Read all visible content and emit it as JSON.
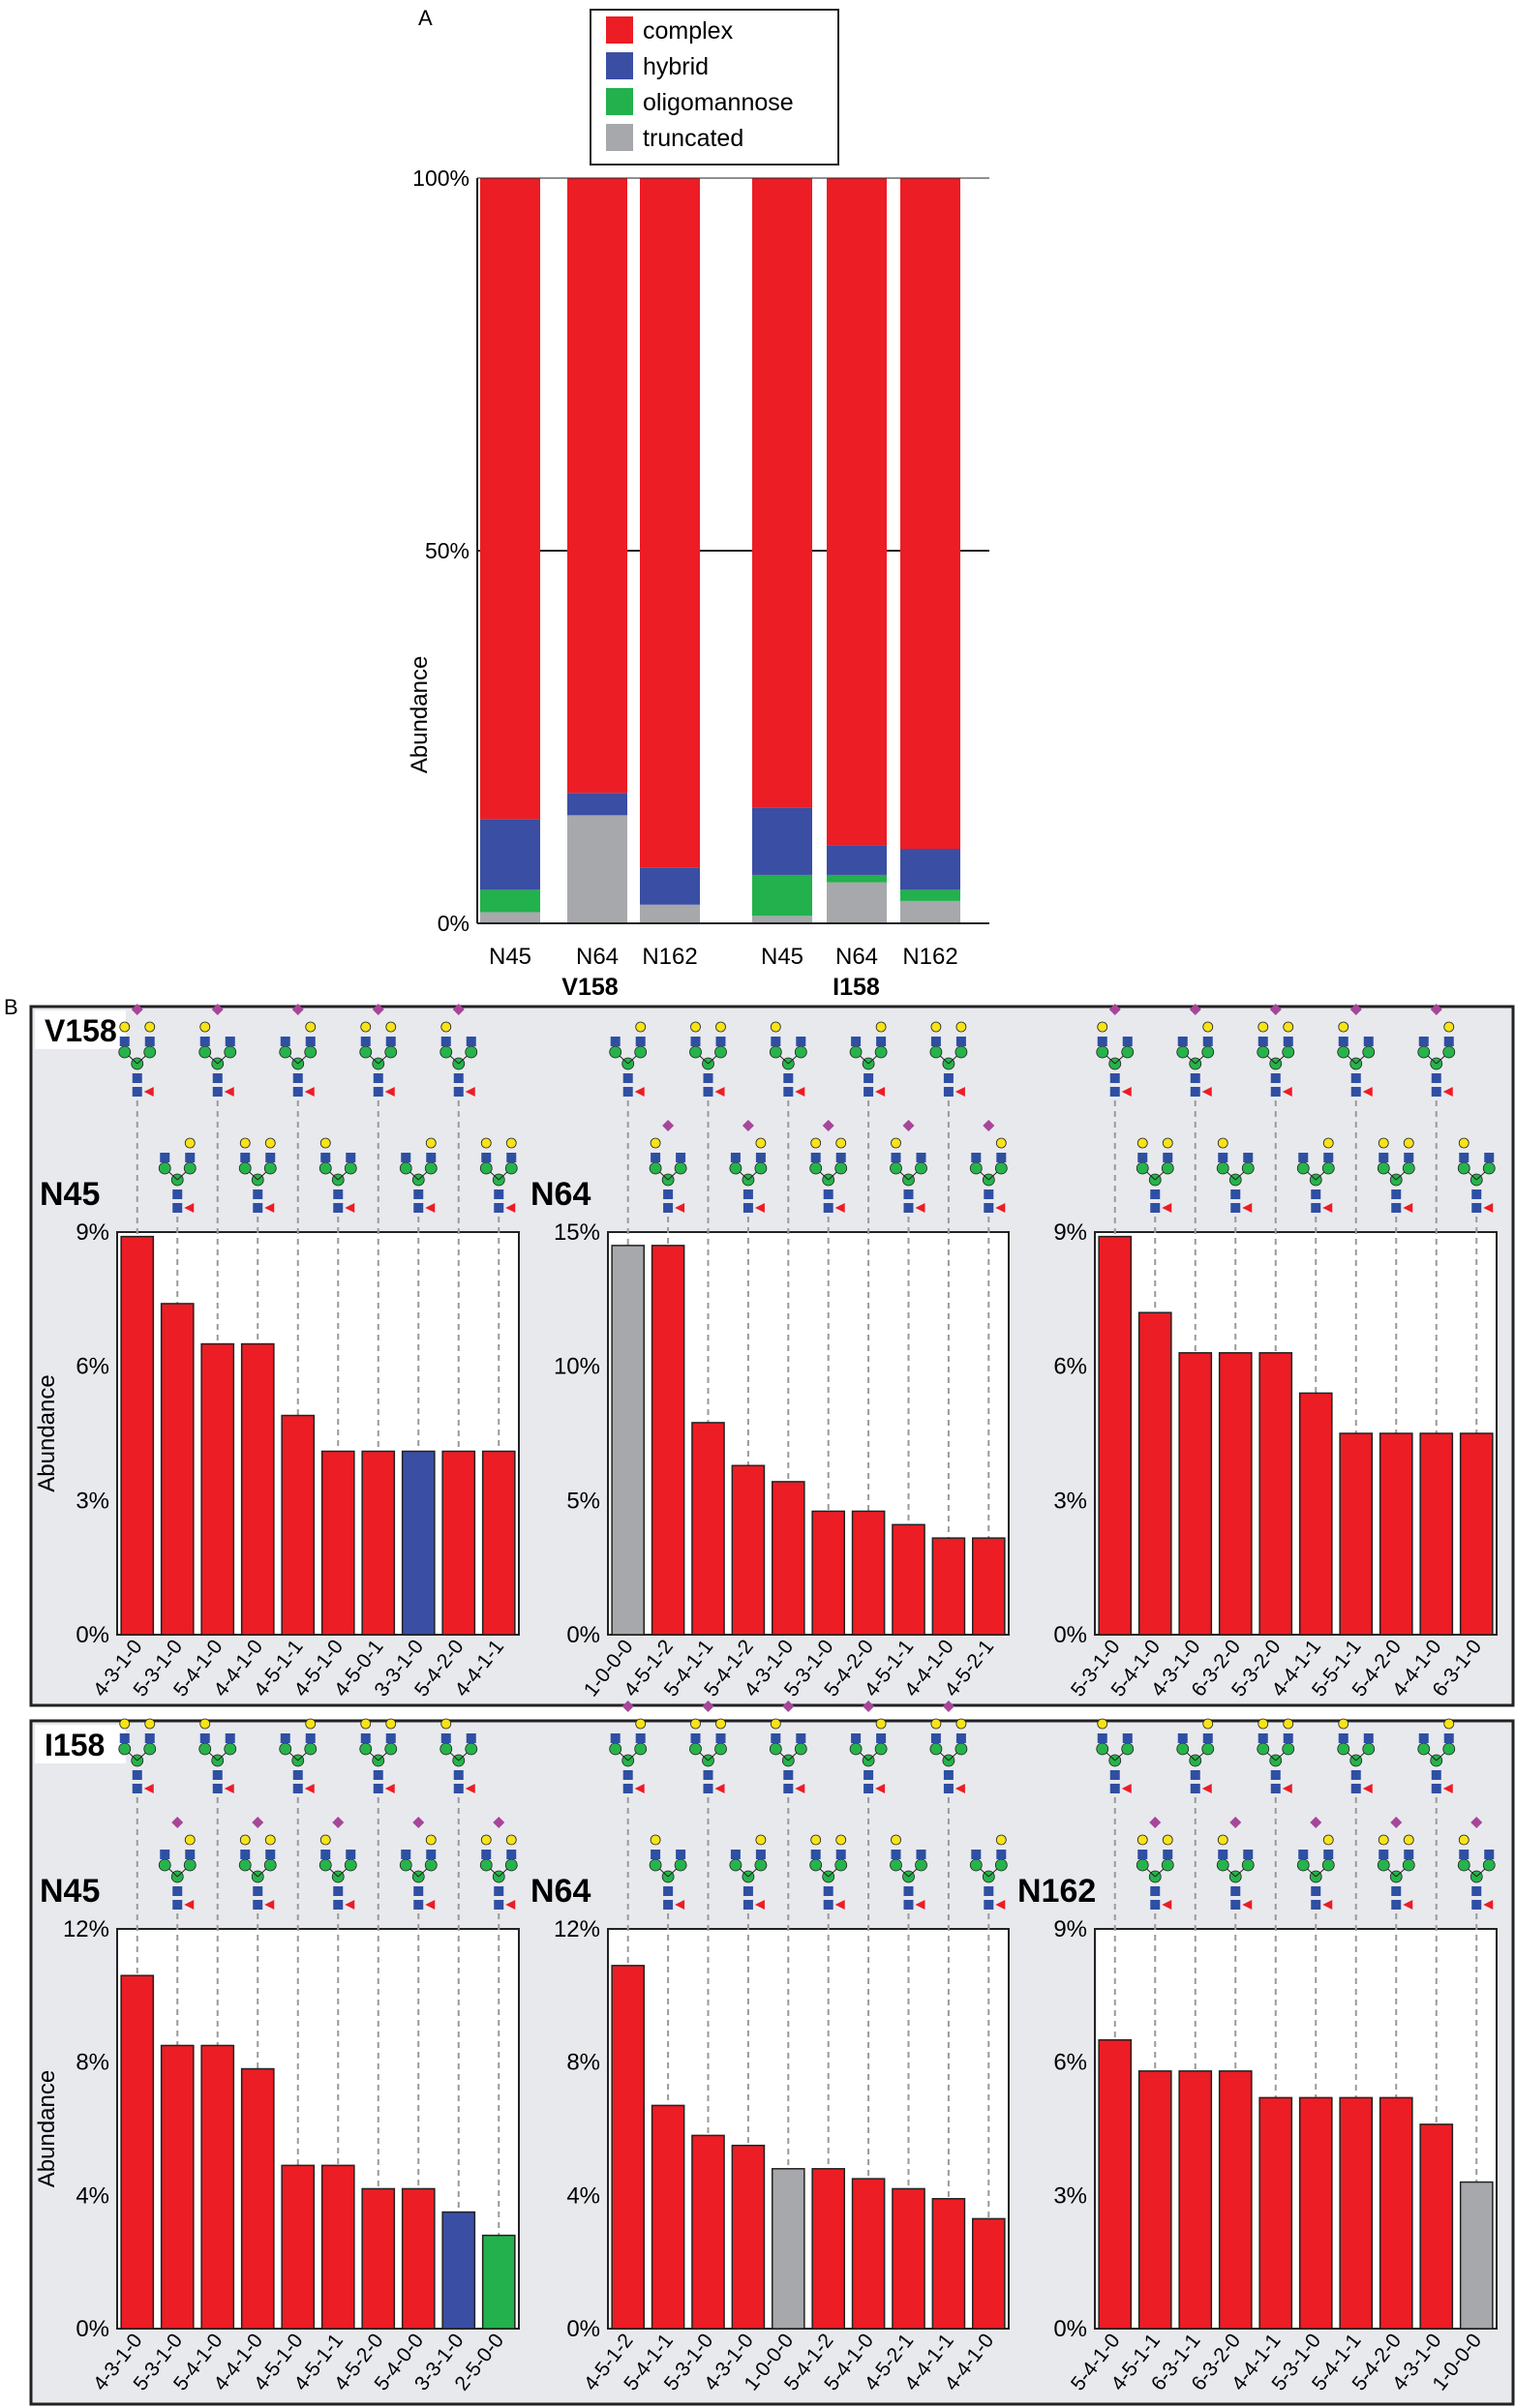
{
  "panel_labels": {
    "a": "A",
    "b": "B"
  },
  "legend": [
    {
      "label": "complex",
      "color": "#ec1d24"
    },
    {
      "label": "hybrid",
      "color": "#3a4ea3"
    },
    {
      "label": "oligomannose",
      "color": "#22b14c"
    },
    {
      "label": "truncated",
      "color": "#a6a8ab"
    }
  ],
  "colors": {
    "complex": "#ec1d24",
    "hybrid": "#3a4ea3",
    "oligomannose": "#22b14c",
    "truncated": "#a6a8ab",
    "panel_bg": "#e8e9ed",
    "fuc": "#ed1c24",
    "glcnac": "#2e4fa3",
    "man": "#27b34b",
    "gal": "#f7e318",
    "sia": "#a6469a"
  },
  "chart_data": [
    {
      "id": "A",
      "type": "bar",
      "stacked": true,
      "ylabel": "Abundance",
      "ylim": [
        0,
        100
      ],
      "yticks": [
        "0%",
        "50%",
        "100%"
      ],
      "categories": [
        "N45",
        "N64",
        "N162",
        "N45",
        "N64",
        "N162"
      ],
      "groups": [
        "V158",
        "I158"
      ],
      "series": [
        {
          "name": "truncated",
          "values": [
            1.5,
            14.5,
            2.5,
            1,
            5.5,
            3
          ]
        },
        {
          "name": "oligomannose",
          "values": [
            3,
            0,
            0,
            5.5,
            1,
            1.5
          ]
        },
        {
          "name": "hybrid",
          "values": [
            9.5,
            3,
            5,
            9,
            4,
            5.5
          ]
        },
        {
          "name": "complex",
          "values": [
            86,
            82.5,
            92.5,
            84.5,
            89.5,
            90
          ]
        }
      ]
    },
    {
      "id": "V158-N45",
      "group": "V158",
      "site": "N45",
      "type": "bar",
      "ylabel": "Abundance",
      "ylim": [
        0,
        9
      ],
      "yticks": [
        "0%",
        "3%",
        "6%",
        "9%"
      ],
      "categories": [
        "4-3-1-0",
        "5-3-1-0",
        "5-4-1-0",
        "4-4-1-0",
        "4-5-1-1",
        "4-5-1-0",
        "4-5-0-1",
        "3-3-1-0",
        "5-4-2-0",
        "4-4-1-1"
      ],
      "values": [
        8.9,
        7.4,
        6.5,
        6.5,
        4.9,
        4.1,
        4.1,
        4.1,
        4.1,
        4.1
      ],
      "types": [
        "complex",
        "complex",
        "complex",
        "complex",
        "complex",
        "complex",
        "complex",
        "hybrid",
        "complex",
        "complex"
      ]
    },
    {
      "id": "V158-N64",
      "group": "V158",
      "site": "N64",
      "type": "bar",
      "ylabel": "",
      "ylim": [
        0,
        15
      ],
      "yticks": [
        "0%",
        "5%",
        "10%",
        "15%"
      ],
      "categories": [
        "1-0-0-0",
        "4-5-1-2",
        "5-4-1-1",
        "5-4-1-2",
        "4-3-1-0",
        "5-3-1-0",
        "5-4-2-0",
        "4-5-1-1",
        "4-4-1-0",
        "4-5-2-1"
      ],
      "values": [
        14.5,
        14.5,
        7.9,
        6.3,
        5.7,
        4.6,
        4.6,
        4.1,
        3.6,
        3.6
      ],
      "types": [
        "truncated",
        "complex",
        "complex",
        "complex",
        "complex",
        "complex",
        "complex",
        "complex",
        "complex",
        "complex"
      ]
    },
    {
      "id": "V158-N162",
      "group": "V158",
      "site": "",
      "type": "bar",
      "ylabel": "",
      "ylim": [
        0,
        9
      ],
      "yticks": [
        "0%",
        "3%",
        "6%",
        "9%"
      ],
      "categories": [
        "5-3-1-0",
        "5-4-1-0",
        "4-3-1-0",
        "6-3-2-0",
        "5-3-2-0",
        "4-4-1-1",
        "5-5-1-1",
        "5-4-2-0",
        "4-4-1-0",
        "6-3-1-0"
      ],
      "values": [
        8.9,
        7.2,
        6.3,
        6.3,
        6.3,
        5.4,
        4.5,
        4.5,
        4.5,
        4.5
      ],
      "types": [
        "complex",
        "complex",
        "complex",
        "complex",
        "complex",
        "complex",
        "complex",
        "complex",
        "complex",
        "complex"
      ]
    },
    {
      "id": "I158-N45",
      "group": "I158",
      "site": "N45",
      "type": "bar",
      "ylabel": "Abundance",
      "ylim": [
        0,
        12
      ],
      "yticks": [
        "0%",
        "4%",
        "8%",
        "12%"
      ],
      "categories": [
        "4-3-1-0",
        "5-3-1-0",
        "5-4-1-0",
        "4-4-1-0",
        "4-5-1-0",
        "4-5-1-1",
        "4-5-2-0",
        "5-4-0-0",
        "3-3-1-0",
        "2-5-0-0"
      ],
      "values": [
        10.6,
        8.5,
        8.5,
        7.8,
        4.9,
        4.9,
        4.2,
        4.2,
        3.5,
        2.8
      ],
      "types": [
        "complex",
        "complex",
        "complex",
        "complex",
        "complex",
        "complex",
        "complex",
        "complex",
        "hybrid",
        "oligomannose"
      ]
    },
    {
      "id": "I158-N64",
      "group": "I158",
      "site": "N64",
      "type": "bar",
      "ylabel": "",
      "ylim": [
        0,
        12
      ],
      "yticks": [
        "0%",
        "4%",
        "8%",
        "12%"
      ],
      "categories": [
        "4-5-1-2",
        "5-4-1-1",
        "5-3-1-0",
        "4-3-1-0",
        "1-0-0-0",
        "5-4-1-2",
        "5-4-1-0",
        "4-5-2-1",
        "4-4-1-1",
        "4-4-1-0"
      ],
      "values": [
        10.9,
        6.7,
        5.8,
        5.5,
        4.8,
        4.8,
        4.5,
        4.2,
        3.9,
        3.3
      ],
      "types": [
        "complex",
        "complex",
        "complex",
        "complex",
        "truncated",
        "complex",
        "complex",
        "complex",
        "complex",
        "complex"
      ]
    },
    {
      "id": "I158-N162",
      "group": "I158",
      "site": "N162",
      "type": "bar",
      "ylabel": "",
      "ylim": [
        0,
        9
      ],
      "yticks": [
        "0%",
        "3%",
        "6%",
        "9%"
      ],
      "categories": [
        "5-4-1-0",
        "4-5-1-1",
        "6-3-1-1",
        "6-3-2-0",
        "4-4-1-1",
        "5-3-1-0",
        "5-4-1-1",
        "5-4-2-0",
        "4-3-1-0",
        "1-0-0-0"
      ],
      "values": [
        6.5,
        5.8,
        5.8,
        5.8,
        5.2,
        5.2,
        5.2,
        5.2,
        4.6,
        3.3
      ],
      "types": [
        "complex",
        "complex",
        "complex",
        "complex",
        "complex",
        "complex",
        "complex",
        "complex",
        "complex",
        "truncated"
      ]
    }
  ]
}
